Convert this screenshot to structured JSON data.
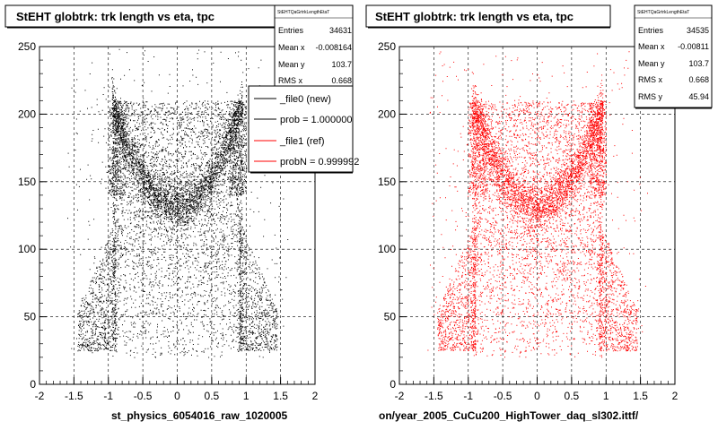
{
  "chart_data": [
    {
      "type": "scatter",
      "title": "StEHT globtrk: trk length vs eta, tpc",
      "xlabel": "st_physics_6054016_raw_1020005",
      "xlim": [
        -2,
        2
      ],
      "ylim": [
        0,
        250
      ],
      "xticks": [
        "-2",
        "-1.5",
        "-1",
        "-0.5",
        "0",
        "0.5",
        "1",
        "1.5",
        "2"
      ],
      "yticks": [
        "0",
        "50",
        "100",
        "150",
        "200",
        "250"
      ],
      "grid": true,
      "color": "#000000",
      "stats": {
        "header": "StEHTQaGrtrkLengthEtaT",
        "entries_label": "Entries",
        "entries": "34631",
        "mean_x_label": "Mean x",
        "mean_x": "-0.008164",
        "mean_y_label": "Mean y",
        "mean_y": "103.7",
        "rms_x_label": "RMS x",
        "rms_x": "0.668"
      },
      "legend": {
        "placement": "top-right",
        "entries": [
          {
            "label": "_file0 (new)",
            "color": "#000000"
          },
          {
            "label": "prob = 1.000000",
            "color": "#000000"
          },
          {
            "label": "_file1 (ref)",
            "color": "#ff0000"
          },
          {
            "label": "probN = 0.999992",
            "color": "#ff0000"
          }
        ]
      }
    },
    {
      "type": "scatter",
      "title": "StEHT globtrk: trk length vs eta, tpc",
      "xlabel": "on/year_2005_CuCu200_HighTower_daq_sl302.ittf/",
      "xlim": [
        -2,
        2
      ],
      "ylim": [
        0,
        250
      ],
      "xticks": [
        "-2",
        "-1.5",
        "-1",
        "-0.5",
        "0",
        "0.5",
        "1",
        "1.5",
        "2"
      ],
      "yticks": [
        "0",
        "50",
        "100",
        "150",
        "200",
        "250"
      ],
      "grid": true,
      "color": "#ff0000",
      "stats": {
        "header": "StEHTQaGrtrkLengthEtaT",
        "entries_label": "Entries",
        "entries": "34535",
        "mean_x_label": "Mean x",
        "mean_x": "-0.00811",
        "mean_y_label": "Mean y",
        "mean_y": "103.7",
        "rms_x_label": "RMS x",
        "rms_x": "0.668",
        "rms_y_label": "RMS y",
        "rms_y": "45.94"
      }
    }
  ]
}
